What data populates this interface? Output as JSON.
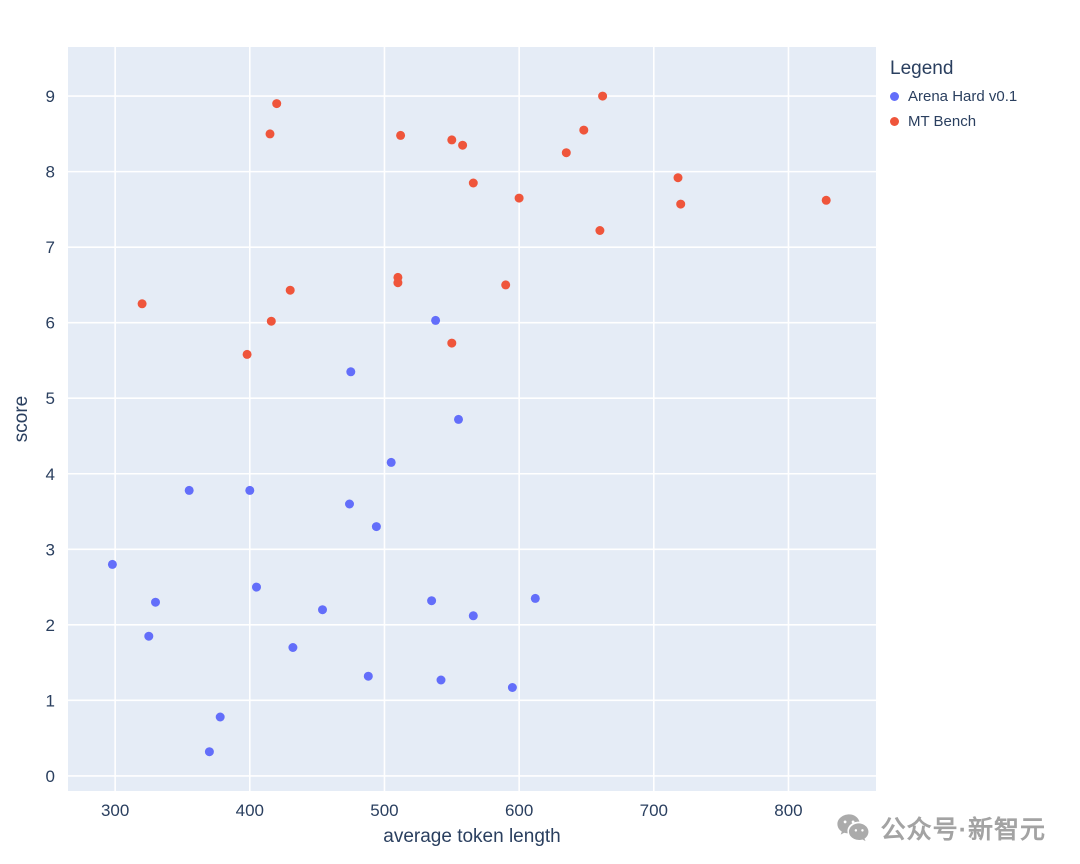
{
  "chart_data": {
    "type": "scatter",
    "title": "",
    "xlabel": "average token length",
    "ylabel": "score",
    "xlim": [
      265,
      865
    ],
    "ylim": [
      -0.2,
      9.65
    ],
    "xticks": [
      300,
      400,
      500,
      600,
      700,
      800
    ],
    "yticks": [
      0,
      1,
      2,
      3,
      4,
      5,
      6,
      7,
      8,
      9
    ],
    "grid": true,
    "plot_bg": "#e5ecf6",
    "grid_color": "#ffffff",
    "text_color": "#2a3f5f",
    "marker_radius": 4.5,
    "legend": {
      "title": "Legend",
      "position": "top-right-outside"
    },
    "series": [
      {
        "name": "Arena Hard v0.1",
        "color": "#636efa",
        "points": [
          [
            298,
            2.8
          ],
          [
            325,
            1.85
          ],
          [
            330,
            2.3
          ],
          [
            355,
            3.78
          ],
          [
            370,
            0.32
          ],
          [
            378,
            0.78
          ],
          [
            400,
            3.78
          ],
          [
            405,
            2.5
          ],
          [
            432,
            1.7
          ],
          [
            454,
            2.2
          ],
          [
            474,
            3.6
          ],
          [
            475,
            5.35
          ],
          [
            488,
            1.32
          ],
          [
            494,
            3.3
          ],
          [
            505,
            4.15
          ],
          [
            535,
            2.32
          ],
          [
            538,
            6.03
          ],
          [
            542,
            1.27
          ],
          [
            555,
            4.72
          ],
          [
            566,
            2.12
          ],
          [
            595,
            1.17
          ],
          [
            612,
            2.35
          ]
        ]
      },
      {
        "name": "MT Bench",
        "color": "#ef553b",
        "points": [
          [
            320,
            6.25
          ],
          [
            398,
            5.58
          ],
          [
            415,
            8.5
          ],
          [
            420,
            8.9
          ],
          [
            416,
            6.02
          ],
          [
            430,
            6.43
          ],
          [
            510,
            6.6
          ],
          [
            510,
            6.53
          ],
          [
            512,
            8.48
          ],
          [
            550,
            8.42
          ],
          [
            550,
            5.73
          ],
          [
            558,
            8.35
          ],
          [
            566,
            7.85
          ],
          [
            590,
            6.5
          ],
          [
            600,
            7.65
          ],
          [
            635,
            8.25
          ],
          [
            648,
            8.55
          ],
          [
            660,
            7.22
          ],
          [
            662,
            9.0
          ],
          [
            718,
            7.92
          ],
          [
            720,
            7.57
          ],
          [
            828,
            7.62
          ]
        ]
      }
    ]
  },
  "watermark": {
    "text": "公众号·新智元",
    "icon": "wechat-icon",
    "color": "#a3a3a3"
  }
}
